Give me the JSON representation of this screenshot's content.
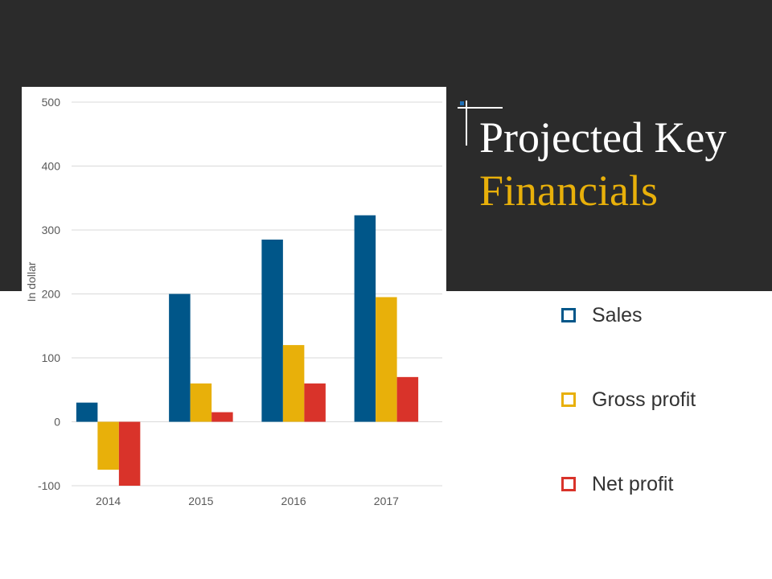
{
  "title": {
    "line1": "Projected Key",
    "line2": "Financials",
    "accent_color": "#e8b00a"
  },
  "legend": [
    {
      "label": "Sales",
      "color": "#005689"
    },
    {
      "label": "Gross profit",
      "color": "#e8b00a"
    },
    {
      "label": "Net profit",
      "color": "#d9332a"
    }
  ],
  "chart_data": {
    "type": "bar",
    "title": "",
    "xlabel": "",
    "ylabel": "In dollar",
    "categories": [
      "2014",
      "2015",
      "2016",
      "2017"
    ],
    "ylim": [
      -100,
      500
    ],
    "yticks": [
      500,
      400,
      300,
      200,
      100,
      0,
      -100
    ],
    "grid": true,
    "series": [
      {
        "name": "Sales",
        "color": "#005689",
        "values": [
          30,
          200,
          285,
          323
        ]
      },
      {
        "name": "Gross profit",
        "color": "#e8b00a",
        "values": [
          -75,
          60,
          120,
          195
        ]
      },
      {
        "name": "Net profit",
        "color": "#d9332a",
        "values": [
          -100,
          15,
          60,
          70
        ]
      }
    ]
  }
}
